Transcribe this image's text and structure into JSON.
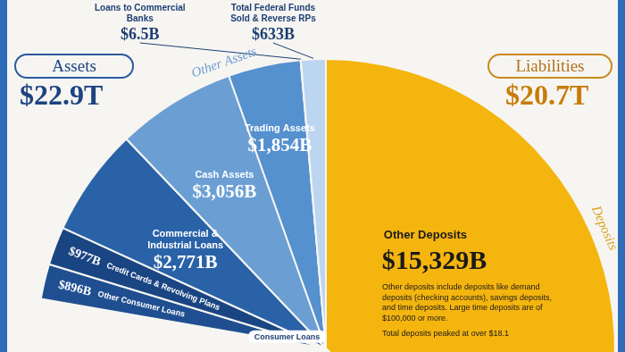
{
  "chart_data": [
    {
      "type": "pie",
      "title": "Assets",
      "total": 22900,
      "total_label": "$22.9T",
      "categories": [
        "Other Consumer Loans",
        "Credit Cards & Revolving Plans",
        "Commercial & Industrial Loans",
        "Cash Assets",
        "Trading Assets",
        "Loans to Commercial Banks",
        "Total Federal Funds Sold & Reverse RPs"
      ],
      "values": [
        896,
        977,
        2771,
        3056,
        1854,
        6.5,
        633
      ],
      "value_labels": [
        "$896B",
        "$977B",
        "$2,771B",
        "$3,056B",
        "$1,854B",
        "$6.5B",
        "$633B"
      ],
      "colors": [
        "#1f4f91",
        "#1a4583",
        "#2a62a8",
        "#6b9fd4",
        "#5590cf",
        "#a9c8ea",
        "#bcd5f0"
      ],
      "data_labels": true,
      "annotations": [
        "Consumer Loans",
        "Other Assets"
      ]
    },
    {
      "type": "pie",
      "title": "Liabilities",
      "total": 20700,
      "total_label": "$20.7T",
      "categories": [
        "Other Deposits"
      ],
      "values": [
        15329
      ],
      "value_labels": [
        "$15,329B"
      ],
      "colors": [
        "#f5b50f"
      ],
      "data_labels": true,
      "annotations": [
        "Deposits"
      ],
      "notes": [
        "Other deposits include deposits like demand deposits (checking accounts), savings deposits, and time deposits. Large time deposits are of $100,000 or more.",
        "Total deposits peaked at over $18.1"
      ]
    }
  ]
}
